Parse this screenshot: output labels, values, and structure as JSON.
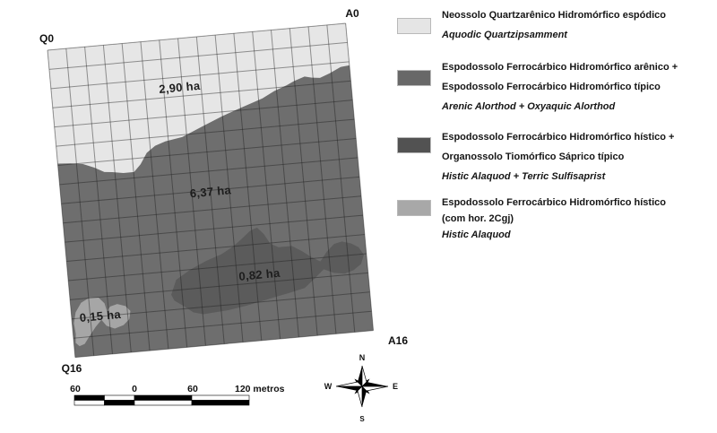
{
  "map": {
    "corner_labels": {
      "a0": "A0",
      "q0": "Q0",
      "a16": "A16",
      "q16": "Q16"
    },
    "zones": [
      {
        "id": "neossolo-quartzarenico",
        "area_label": "2,90 ha",
        "color": "#e6e6e6"
      },
      {
        "id": "espodossolo-arenico-tipico",
        "area_label": "6,37 ha",
        "color": "#6e6e6e"
      },
      {
        "id": "espodossolo-histico-organossolo",
        "area_label": "0,82 ha",
        "color": "#5b5b5b"
      },
      {
        "id": "espodossolo-histico-2cgj",
        "area_label": "0,15 ha",
        "color": "#a6a6a6"
      }
    ]
  },
  "legend": {
    "items": [
      {
        "lines": [
          "Neossolo Quartzarênico Hidromórfico espódico"
        ],
        "latin": "Aquodic Quartzipsamment",
        "color": "#e5e5e5"
      },
      {
        "lines": [
          "Espodossolo Ferrocárbico Hidromórfico arênico +",
          "Espodossolo Ferrocárbico Hidromórfico típico"
        ],
        "latin": "Arenic Alorthod + Oxyaquic Alorthod",
        "color": "#686868"
      },
      {
        "lines": [
          "Espodossolo Ferrocárbico Hidromórfico hístico +",
          "Organossolo Tiomórfico Sáprico típico"
        ],
        "latin": "Histic Alaquod + Terric Sulfisaprist",
        "color": "#525252"
      },
      {
        "lines": [
          "Espodossolo Ferrocárbico Hidromórfico hístico",
          "(com hor. 2Cgj)"
        ],
        "latin": "Histic Alaquod",
        "color": "#a8a8a8"
      }
    ]
  },
  "scale_bar": {
    "labels": [
      "60",
      "0",
      "60",
      "120 metros"
    ]
  },
  "compass": {
    "n": "N",
    "e": "E",
    "s": "S",
    "w": "W"
  }
}
